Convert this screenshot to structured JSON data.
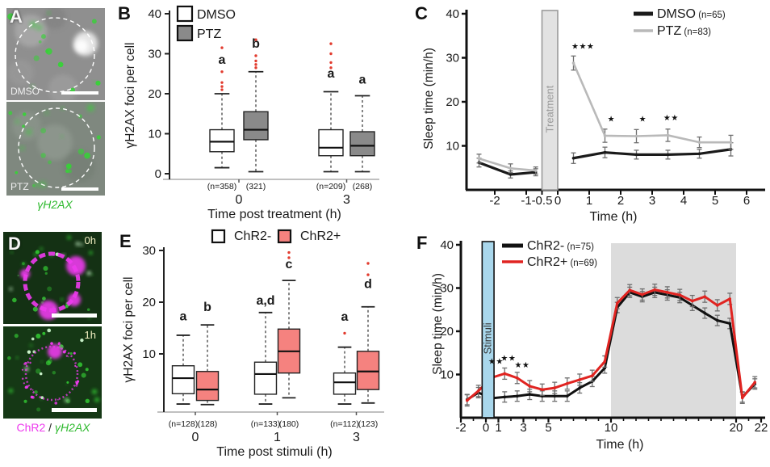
{
  "panel_labels": {
    "A": "A",
    "B": "B",
    "C": "C",
    "D": "D",
    "E": "E",
    "F": "F"
  },
  "panelA": {
    "images": [
      {
        "label": "DMSO"
      },
      {
        "label": "PTZ"
      }
    ],
    "caption": "γH2AX"
  },
  "panelD": {
    "images": [
      {
        "label": "0h"
      },
      {
        "label": "1h"
      }
    ],
    "caption": {
      "chr2": "ChR2",
      "sep": " / ",
      "h2ax": "γH2AX"
    }
  },
  "colors": {
    "ptz_box": "#8a8a8a",
    "chr2plus_box": "#f5827f",
    "red_line": "#e02421",
    "gray_line": "#b9b9b9",
    "night": "#dcdcdc",
    "stimuli": "#a9d7ec",
    "treatment": "#e2e2e2",
    "outlier": "#e23b2e",
    "fluor_green": "#35d435",
    "magenta": "#ee3bee"
  },
  "chart_data": [
    {
      "id": "B",
      "type": "boxplot",
      "title": "",
      "ylabel": "γH2AX foci per cell",
      "xlabel": "Time post treatment (h)",
      "ylim": [
        0,
        40
      ],
      "yticks": [
        0,
        10,
        20,
        30,
        40
      ],
      "legend": [
        {
          "label": "DMSO",
          "fill": "#ffffff"
        },
        {
          "label": "PTZ",
          "fill": "#8a8a8a"
        }
      ],
      "groups": [
        {
          "category": "0",
          "boxes": [
            {
              "series": "DMSO",
              "n": "(n=358)",
              "sig": "a",
              "sig_y": 27.5,
              "whisker_low": 1.5,
              "q1": 5.5,
              "median": 8,
              "q3": 11,
              "whisker_high": 20,
              "outliers": [
                21,
                21.8,
                22.8,
                25.5,
                31.5
              ]
            },
            {
              "series": "PTZ",
              "n": "(321)",
              "sig": "b",
              "sig_y": 31.5,
              "whisker_low": 0.5,
              "q1": 8.5,
              "median": 11,
              "q3": 15.5,
              "whisker_high": 25.5,
              "outliers": [
                26.5,
                27.3,
                28.2,
                29.5,
                33.5
              ]
            }
          ]
        },
        {
          "category": "3",
          "boxes": [
            {
              "series": "DMSO",
              "n": "(n=209)",
              "sig": "a",
              "sig_y": 24,
              "whisker_low": 0.5,
              "q1": 4.5,
              "median": 6.5,
              "q3": 11,
              "whisker_high": 20.5,
              "outliers": [
                26.5,
                27.8,
                30,
                32.5
              ]
            },
            {
              "series": "PTZ",
              "n": "(268)",
              "sig": "a",
              "sig_y": 22.5,
              "whisker_low": 0.5,
              "q1": 4.5,
              "median": 7,
              "q3": 10.5,
              "whisker_high": 19.5,
              "outliers": []
            }
          ]
        }
      ]
    },
    {
      "id": "C",
      "type": "line",
      "ylabel": "Sleep time (min/h)",
      "xlabel": "Time (h)",
      "ylim": [
        0,
        40
      ],
      "yticks": [
        10,
        20,
        30,
        40
      ],
      "xticks": [
        -2,
        -1,
        -0.5,
        0,
        1,
        2,
        3,
        4,
        5,
        6
      ],
      "span": {
        "label": "Treatment",
        "x0": -0.5,
        "x1": 0
      },
      "series": [
        {
          "name": "DMSO",
          "n": "(n=65)",
          "color": "#1a1a1a",
          "width": 3.2,
          "segments": [
            {
              "x": [
                -2.5,
                -1.5,
                -0.7
              ],
              "y": [
                6.2,
                3.5,
                4.0
              ],
              "err": [
                1,
                0.8,
                0.8
              ]
            },
            {
              "x": [
                0.5,
                1.5,
                2.5,
                3.5,
                4.5,
                5.5
              ],
              "y": [
                7.2,
                8.5,
                8.0,
                8.0,
                8.2,
                9.2
              ],
              "err": [
                1.2,
                1.2,
                1,
                1,
                1,
                1.5
              ]
            }
          ]
        },
        {
          "name": "PTZ",
          "n": "(n=83)",
          "color": "#b9b9b9",
          "width": 2.6,
          "segments": [
            {
              "x": [
                -2.5,
                -1.5,
                -0.7
              ],
              "y": [
                7.1,
                4.9,
                4.4
              ],
              "err": [
                1,
                1,
                0.8
              ]
            },
            {
              "x": [
                0.5,
                1.5,
                2.5,
                3.5,
                4.5,
                5.5
              ],
              "y": [
                28.8,
                12.3,
                12.2,
                12.4,
                10.8,
                10.8
              ],
              "err": [
                1.6,
                1.5,
                1.5,
                1.4,
                1.2,
                1.6
              ]
            }
          ]
        }
      ],
      "stars": [
        {
          "x": 0.8,
          "y": 32,
          "text": "***"
        },
        {
          "x": 1.7,
          "y": 15.5,
          "text": "*"
        },
        {
          "x": 2.7,
          "y": 15.5,
          "text": "*"
        },
        {
          "x": 3.6,
          "y": 15.8,
          "text": "**"
        }
      ]
    },
    {
      "id": "E",
      "type": "boxplot",
      "ylabel": "γH2AX foci per cell",
      "xlabel": "Time post stimuli (h)",
      "ylim": [
        0,
        30
      ],
      "yticks": [
        10,
        20,
        30
      ],
      "legend": [
        {
          "label": "ChR2-",
          "fill": "#ffffff"
        },
        {
          "label": "ChR2+",
          "fill": "#f5827f"
        }
      ],
      "groups": [
        {
          "category": "0",
          "boxes": [
            {
              "series": "ChR2-",
              "n": "(n=128)",
              "sig": "a",
              "sig_y": 16.5,
              "whisker_low": 0.3,
              "q1": 2.3,
              "median": 5.3,
              "q3": 7.7,
              "whisker_high": 13.6,
              "outliers": []
            },
            {
              "series": "ChR2+",
              "n": "(128)",
              "sig": "b",
              "sig_y": 18.3,
              "whisker_low": 0.2,
              "q1": 1,
              "median": 3.1,
              "q3": 6.6,
              "whisker_high": 15.6,
              "outliers": []
            }
          ]
        },
        {
          "category": "1",
          "boxes": [
            {
              "series": "ChR2-",
              "n": "(n=133)",
              "sig": "a,d",
              "sig_y": 19.5,
              "whisker_low": 0.3,
              "q1": 2.2,
              "median": 6.1,
              "q3": 8.4,
              "whisker_high": 18,
              "outliers": []
            },
            {
              "series": "ChR2+",
              "n": "(180)",
              "sig": "c",
              "sig_y": 26.6,
              "whisker_low": 1.5,
              "q1": 6.3,
              "median": 10.5,
              "q3": 14.8,
              "whisker_high": 24.2,
              "outliers": [
                28.6,
                29.6
              ]
            }
          ]
        },
        {
          "category": "3",
          "boxes": [
            {
              "series": "ChR2-",
              "n": "(n=112)",
              "sig": "a",
              "sig_y": 16.4,
              "whisker_low": 0.3,
              "q1": 2.2,
              "median": 4.5,
              "q3": 6.3,
              "whisker_high": 11.3,
              "outliers": [
                14
              ]
            },
            {
              "series": "ChR2+",
              "n": "(123)",
              "sig": "d",
              "sig_y": 22.7,
              "whisker_low": 0.5,
              "q1": 3.1,
              "median": 6.6,
              "q3": 10.5,
              "whisker_high": 19.1,
              "outliers": [
                25.3,
                27.5
              ]
            }
          ]
        }
      ]
    },
    {
      "id": "F",
      "type": "line",
      "ylabel": "Sleep time (min/h)",
      "xlabel": "Time (h)",
      "ylim": [
        0,
        40
      ],
      "yticks": [
        10,
        20,
        30,
        40
      ],
      "xticks_labeled": [
        -2,
        0,
        1,
        3,
        5,
        10,
        20,
        22
      ],
      "minor_step": 1,
      "xrange": [
        -2,
        22
      ],
      "span": {
        "label": "Stimuli",
        "x0": -0.3,
        "x1": 0.65
      },
      "night": {
        "x0": 10,
        "x1": 20
      },
      "series": [
        {
          "name": "ChR2-",
          "n": "(n=75)",
          "color": "#111111",
          "width": 3,
          "segments": [
            {
              "x": [
                -1.5,
                -0.6,
                0.5,
                1.5,
                2.5,
                3.5,
                4.5,
                5.5,
                6.5,
                7.5,
                8.5,
                9.5,
                10.5,
                11.5,
                12.5,
                13.5,
                14.5,
                15.5,
                16.5,
                17.5,
                18.5,
                19.5,
                20.5,
                21.5
              ],
              "y": [
                4.2,
                5.8,
                4.5,
                4.8,
                5.0,
                5.4,
                5.0,
                5.0,
                5.0,
                6.9,
                8.4,
                11.5,
                25.5,
                29,
                28,
                29,
                28.4,
                27.8,
                26,
                24.2,
                22.5,
                21.8,
                4.8,
                7.8
              ],
              "err": 1.2
            }
          ]
        },
        {
          "name": "ChR2+",
          "n": "(n=69)",
          "color": "#e02421",
          "width": 3,
          "segments": [
            {
              "x": [
                -1.5,
                -0.6,
                0.5,
                1.5,
                2.5,
                3.5,
                4.5,
                5.5,
                6.5,
                7.5,
                8.5,
                9.5,
                10.5,
                11.5,
                12.5,
                13.5,
                14.5,
                15.5,
                16.5,
                17.5,
                18.5,
                19.5,
                20.5,
                21.5
              ],
              "y": [
                4.0,
                6.2,
                9.3,
                10.2,
                9.2,
                7.3,
                6.5,
                6.9,
                7.9,
                8.8,
                9.7,
                13,
                26.5,
                29.5,
                28.5,
                29.6,
                29,
                28.4,
                27,
                28,
                26,
                27.5,
                4.6,
                8.2
              ],
              "err": 1.3
            }
          ]
        }
      ],
      "stars": [
        {
          "x": 0.8,
          "y": 12.4,
          "text": "**"
        },
        {
          "x": 1.8,
          "y": 13.2,
          "text": "**"
        },
        {
          "x": 2.9,
          "y": 11.6,
          "text": "**"
        }
      ]
    }
  ]
}
